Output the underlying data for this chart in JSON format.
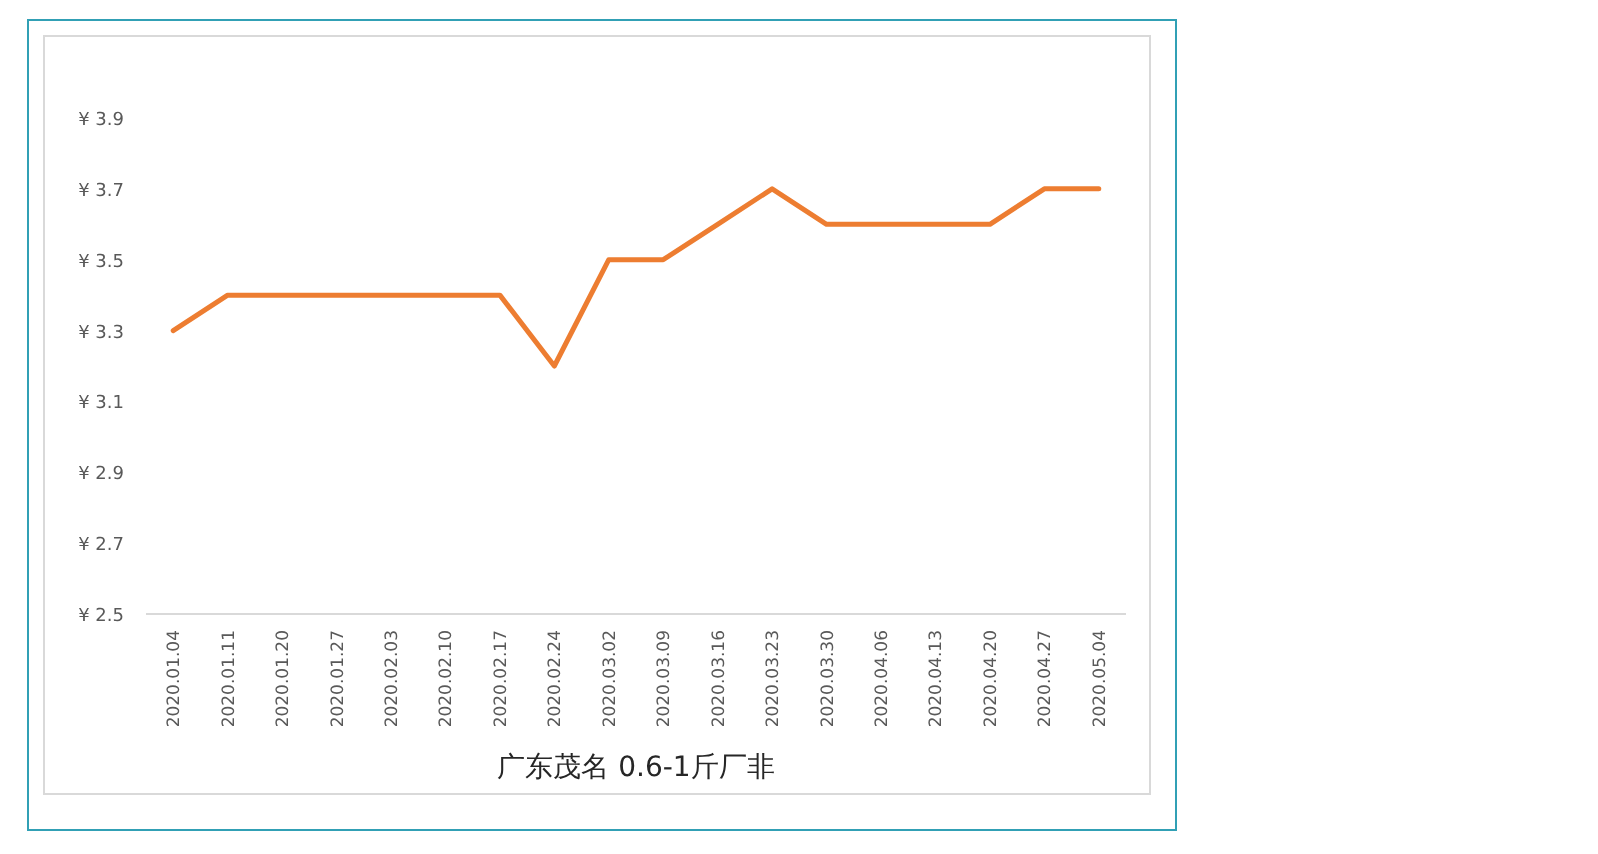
{
  "chart_data": {
    "type": "line",
    "xlabel": "广东茂名 0.6-1斤厂非",
    "categories": [
      "2020.01.04",
      "2020.01.11",
      "2020.01.20",
      "2020.01.27",
      "2020.02.03",
      "2020.02.10",
      "2020.02.17",
      "2020.02.24",
      "2020.03.02",
      "2020.03.09",
      "2020.03.16",
      "2020.03.23",
      "2020.03.30",
      "2020.04.06",
      "2020.04.13",
      "2020.04.20",
      "2020.04.27",
      "2020.05.04"
    ],
    "values": [
      3.3,
      3.4,
      3.4,
      3.4,
      3.4,
      3.4,
      3.4,
      3.2,
      3.5,
      3.5,
      3.6,
      3.7,
      3.6,
      3.6,
      3.6,
      3.6,
      3.7,
      3.7
    ],
    "color": "#ed7d31",
    "ylim": [
      2.5,
      3.9
    ],
    "yticks": [
      {
        "value": 2.5,
        "label": "¥ 2.5"
      },
      {
        "value": 2.7,
        "label": "¥ 2.7"
      },
      {
        "value": 2.9,
        "label": "¥ 2.9"
      },
      {
        "value": 3.1,
        "label": "¥ 3.1"
      },
      {
        "value": 3.3,
        "label": "¥ 3.3"
      },
      {
        "value": 3.5,
        "label": "¥ 3.5"
      },
      {
        "value": 3.7,
        "label": "¥ 3.7"
      },
      {
        "value": 3.9,
        "label": "¥ 3.9"
      }
    ],
    "grid": false,
    "marker": "none",
    "line_style": "solid"
  }
}
